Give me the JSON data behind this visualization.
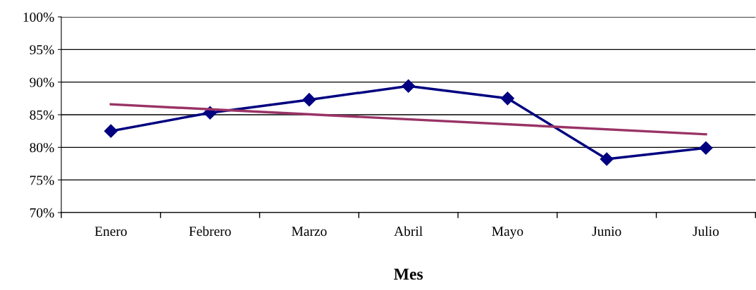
{
  "chart_data": {
    "type": "line",
    "xlabel": "Mes",
    "categories": [
      "Enero",
      "Febrero",
      "Marzo",
      "Abril",
      "Mayo",
      "Junio",
      "Julio"
    ],
    "series": [
      {
        "color": "#000080",
        "values": [
          82.5,
          85.3,
          87.3,
          89.4,
          87.5,
          78.2,
          79.9
        ],
        "marker": "diamond"
      },
      {
        "type": "line",
        "color": "#993366",
        "x": [
          "Enero",
          "Julio"
        ],
        "values": [
          86.6,
          82.0
        ],
        "marker": "none"
      }
    ],
    "ylim": [
      70,
      100
    ],
    "yticks": [
      {
        "value": 70,
        "label": "70%"
      },
      {
        "value": 75,
        "label": "75%"
      },
      {
        "value": 80,
        "label": "80%"
      },
      {
        "value": 85,
        "label": "85%"
      },
      {
        "value": 90,
        "label": "90%"
      },
      {
        "value": 95,
        "label": "95%"
      },
      {
        "value": 100,
        "label": "100%"
      }
    ],
    "grid": "y",
    "legend": false,
    "line_style": "solid"
  }
}
